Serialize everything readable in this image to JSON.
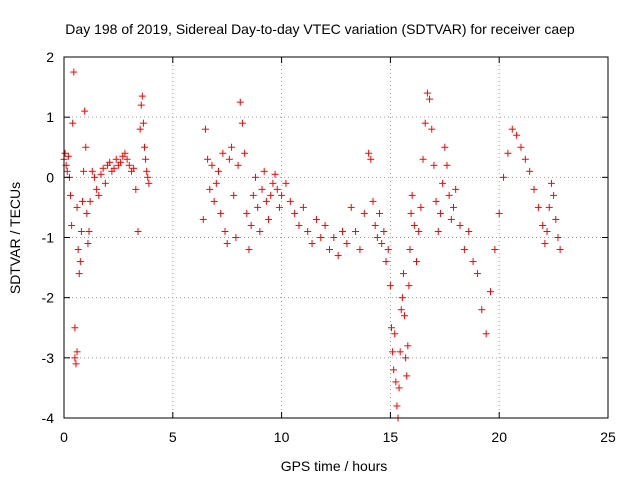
{
  "chart_data": {
    "type": "scatter",
    "title": "Day 198 of 2019, Sidereal Day-to-day VTEC variation (SDTVAR) for receiver caep",
    "xlabel": "GPS time / hours",
    "ylabel": "SDTVAR / TECUs",
    "xlim": [
      0,
      25
    ],
    "ylim": [
      -4,
      2
    ],
    "xticks": [
      0,
      5,
      10,
      15,
      20,
      25
    ],
    "yticks": [
      -4,
      -3,
      -2,
      -1,
      0,
      1,
      2
    ],
    "grid": true,
    "marker": "+",
    "series": [
      {
        "name": "SDTVAR",
        "color": "#ff0000",
        "x": [
          0.0,
          0.05,
          0.1,
          0.15,
          0.2,
          0.25,
          0.3,
          0.35,
          0.4,
          0.45,
          0.5,
          0.5,
          0.55,
          0.6,
          0.6,
          0.65,
          0.7,
          0.75,
          0.8,
          0.85,
          0.9,
          0.95,
          1.0,
          1.05,
          1.1,
          1.15,
          1.2,
          1.3,
          1.4,
          1.5,
          1.6,
          1.7,
          1.8,
          1.9,
          2.0,
          2.1,
          2.2,
          2.3,
          2.4,
          2.5,
          2.6,
          2.7,
          2.8,
          2.9,
          3.0,
          3.1,
          3.2,
          3.3,
          3.4,
          3.5,
          3.55,
          3.6,
          3.65,
          3.7,
          3.75,
          3.8,
          3.85,
          3.9,
          6.4,
          6.5,
          6.6,
          6.7,
          6.8,
          6.9,
          7.0,
          7.1,
          7.2,
          7.3,
          7.4,
          7.5,
          7.6,
          7.7,
          7.8,
          7.9,
          8.0,
          8.1,
          8.2,
          8.3,
          8.4,
          8.5,
          8.6,
          8.7,
          8.8,
          8.9,
          9.0,
          9.1,
          9.2,
          9.3,
          9.4,
          9.5,
          9.6,
          9.7,
          9.8,
          9.9,
          10.0,
          10.2,
          10.4,
          10.6,
          10.8,
          11.0,
          11.2,
          11.4,
          11.6,
          11.8,
          12.0,
          12.2,
          12.4,
          12.6,
          12.8,
          13.0,
          13.2,
          13.4,
          13.6,
          13.8,
          14.0,
          14.1,
          14.2,
          14.3,
          14.4,
          14.5,
          14.6,
          14.7,
          14.8,
          14.9,
          15.0,
          15.05,
          15.1,
          15.15,
          15.2,
          15.25,
          15.3,
          15.35,
          15.4,
          15.45,
          15.5,
          15.55,
          15.6,
          15.65,
          15.7,
          15.75,
          15.8,
          15.85,
          15.9,
          15.95,
          16.0,
          16.1,
          16.2,
          16.3,
          16.4,
          16.5,
          16.6,
          16.7,
          16.8,
          16.9,
          17.0,
          17.1,
          17.2,
          17.3,
          17.4,
          17.5,
          17.6,
          17.7,
          17.8,
          17.9,
          18.0,
          18.2,
          18.4,
          18.6,
          18.8,
          19.0,
          19.2,
          19.4,
          19.6,
          19.8,
          20.0,
          20.2,
          20.4,
          20.6,
          20.8,
          21.0,
          21.2,
          21.4,
          21.6,
          21.8,
          22.0,
          22.1,
          22.2,
          22.3,
          22.4,
          22.5,
          22.6,
          22.7,
          22.8
        ],
        "y": [
          0.3,
          0.4,
          0.2,
          0.1,
          0.35,
          0.0,
          -0.3,
          -0.8,
          0.9,
          1.75,
          -2.5,
          -3.0,
          -3.1,
          -2.9,
          -0.5,
          -1.2,
          -1.6,
          -1.4,
          -0.9,
          -0.4,
          0.1,
          1.1,
          0.5,
          -0.6,
          -1.1,
          -0.9,
          -0.4,
          0.1,
          0.0,
          -0.2,
          -0.3,
          0.05,
          0.15,
          -0.1,
          0.2,
          0.25,
          0.1,
          0.15,
          0.3,
          0.2,
          0.25,
          0.35,
          0.4,
          0.3,
          0.2,
          0.1,
          0.15,
          -0.2,
          -0.9,
          0.8,
          1.2,
          1.35,
          0.9,
          0.5,
          0.3,
          0.1,
          0.0,
          -0.1,
          -0.7,
          0.8,
          0.3,
          -0.2,
          0.2,
          -0.4,
          -0.1,
          0.1,
          -0.6,
          0.4,
          -0.9,
          -1.1,
          0.3,
          0.5,
          -0.3,
          -1.0,
          0.2,
          1.25,
          0.9,
          0.4,
          -0.6,
          -1.2,
          -0.8,
          -0.3,
          0.0,
          -0.5,
          -0.9,
          -0.2,
          0.1,
          -0.4,
          -0.7,
          -0.3,
          -0.1,
          0.05,
          -0.2,
          -0.5,
          -0.3,
          -0.1,
          -0.4,
          -0.6,
          -0.8,
          -0.5,
          -0.9,
          -1.1,
          -0.7,
          -1.0,
          -0.8,
          -1.2,
          -1.0,
          -1.3,
          -0.9,
          -1.1,
          -0.5,
          -0.9,
          -1.2,
          -0.6,
          0.4,
          0.3,
          -0.4,
          -0.8,
          -1.0,
          -0.6,
          -1.1,
          -0.9,
          -1.4,
          -1.2,
          -1.8,
          -2.5,
          -2.9,
          -3.2,
          -2.6,
          -3.4,
          -3.8,
          -4.0,
          -3.5,
          -2.9,
          -2.2,
          -2.0,
          -1.6,
          -2.3,
          -3.0,
          -3.3,
          -2.8,
          -1.8,
          -1.2,
          -0.6,
          -0.3,
          -0.8,
          -1.4,
          -0.9,
          -0.5,
          0.3,
          0.9,
          1.4,
          1.3,
          0.8,
          0.2,
          -0.4,
          -0.9,
          -0.6,
          -0.1,
          0.5,
          0.2,
          -0.3,
          -0.7,
          -0.5,
          -0.2,
          -0.8,
          -1.2,
          -0.9,
          -1.4,
          -1.6,
          -2.2,
          -2.6,
          -1.9,
          -1.2,
          -0.6,
          0.0,
          0.4,
          0.8,
          0.7,
          0.5,
          0.3,
          0.1,
          -0.2,
          -0.5,
          -0.8,
          -1.1,
          -0.9,
          -0.5,
          -0.1,
          -0.3,
          -0.7,
          -1.0,
          -1.2
        ]
      }
    ]
  }
}
